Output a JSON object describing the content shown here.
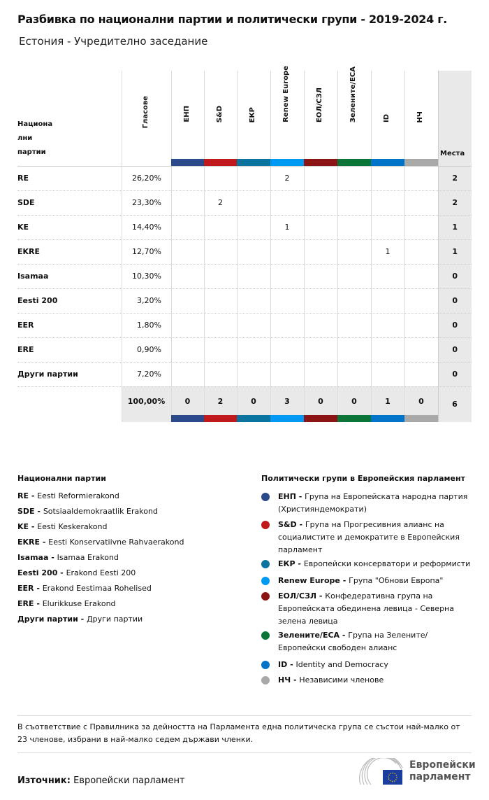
{
  "title": "Разбивка по национални партии и политически групи - 2019-2024 г.",
  "subtitle": "Естония - Учредително заседание",
  "table": {
    "party_header": [
      "Национа",
      "лни",
      "партии"
    ],
    "votes_header": "Гласове",
    "seats_header": "Места",
    "groups": [
      {
        "label": "ЕНП",
        "color": "#2b4a8b"
      },
      {
        "label": "S&D",
        "color": "#c0191b"
      },
      {
        "label": "ЕКР",
        "color": "#0b73a0"
      },
      {
        "label": "Renew Europe",
        "color": "#0099f4"
      },
      {
        "label": "ЕОЛ/СЗЛ",
        "color": "#8b1414"
      },
      {
        "label": "Зелените/ЕСА",
        "color": "#0b7537"
      },
      {
        "label": "ID",
        "color": "#0074c8"
      },
      {
        "label": "НЧ",
        "color": "#a9a9a9"
      }
    ],
    "rows": [
      {
        "party": "RE",
        "votes": "26,20%",
        "cells": [
          "",
          "",
          "",
          "2",
          "",
          "",
          "",
          ""
        ],
        "seats": "2"
      },
      {
        "party": "SDE",
        "votes": "23,30%",
        "cells": [
          "",
          "2",
          "",
          "",
          "",
          "",
          "",
          ""
        ],
        "seats": "2"
      },
      {
        "party": "KE",
        "votes": "14,40%",
        "cells": [
          "",
          "",
          "",
          "1",
          "",
          "",
          "",
          ""
        ],
        "seats": "1"
      },
      {
        "party": "EKRE",
        "votes": "12,70%",
        "cells": [
          "",
          "",
          "",
          "",
          "",
          "",
          "1",
          ""
        ],
        "seats": "1"
      },
      {
        "party": "Isamaa",
        "votes": "10,30%",
        "cells": [
          "",
          "",
          "",
          "",
          "",
          "",
          "",
          ""
        ],
        "seats": "0"
      },
      {
        "party": "Eesti 200",
        "votes": "3,20%",
        "cells": [
          "",
          "",
          "",
          "",
          "",
          "",
          "",
          ""
        ],
        "seats": "0"
      },
      {
        "party": "EER",
        "votes": "1,80%",
        "cells": [
          "",
          "",
          "",
          "",
          "",
          "",
          "",
          ""
        ],
        "seats": "0"
      },
      {
        "party": "ERE",
        "votes": "0,90%",
        "cells": [
          "",
          "",
          "",
          "",
          "",
          "",
          "",
          ""
        ],
        "seats": "0"
      },
      {
        "party": "Други партии",
        "votes": "7,20%",
        "cells": [
          "",
          "",
          "",
          "",
          "",
          "",
          "",
          ""
        ],
        "seats": "0"
      }
    ],
    "totals": {
      "votes": "100,00%",
      "cells": [
        "0",
        "2",
        "0",
        "3",
        "0",
        "0",
        "1",
        "0"
      ],
      "seats": "6"
    }
  },
  "legend_parties": {
    "title": "Национални партии",
    "items": [
      {
        "abbr": "RE",
        "name": "Eesti Reformierakond"
      },
      {
        "abbr": "SDE",
        "name": "Sotsiaaldemokraatlik Erakond"
      },
      {
        "abbr": "KE",
        "name": "Eesti Keskerakond"
      },
      {
        "abbr": "EKRE",
        "name": "Eesti Konservatiivne Rahvaerakond"
      },
      {
        "abbr": "Isamaa",
        "name": "Isamaa Erakond"
      },
      {
        "abbr": "Eesti 200",
        "name": "Erakond Eesti 200"
      },
      {
        "abbr": "EER",
        "name": "Erakond Eestimaa Rohelised"
      },
      {
        "abbr": "ERE",
        "name": "Elurikkuse Erakond"
      },
      {
        "abbr": "Други партии",
        "name": "Други партии"
      }
    ]
  },
  "legend_groups": {
    "title": "Политически групи в Европейския парламент",
    "items": [
      {
        "abbr": "ЕНП",
        "name": "Група на Европейската народна партия (Християндемократи)"
      },
      {
        "abbr": "S&D",
        "name": "Група на Прогресивния алианс на социалистите и демократите в Европейския парламент"
      },
      {
        "abbr": "ЕКР",
        "name": "Европейски консерватори и реформисти"
      },
      {
        "abbr": "Renew Europe",
        "name": "Група \"Обнови Европа\""
      },
      {
        "abbr": "ЕОЛ/СЗЛ",
        "name": "Конфедеративна група на Европейската обединена левица - Северна зелена левица"
      },
      {
        "abbr": "Зелените/ЕСА",
        "name": "Група на Зелените/ Европейски свободен алианс"
      },
      {
        "abbr": "ID",
        "name": "Identity and Democracy"
      },
      {
        "abbr": "НЧ",
        "name": "Независими членове"
      }
    ]
  },
  "note": "В съответствие с Правилника за дейността на Парламента една политическа група се състои най-малко от 23 членове, избрани в най-малко седем държави членки.",
  "source_label": "Източник:",
  "source_value": "Европейски парламент",
  "logo_text": [
    "Европейски",
    "парламент"
  ]
}
